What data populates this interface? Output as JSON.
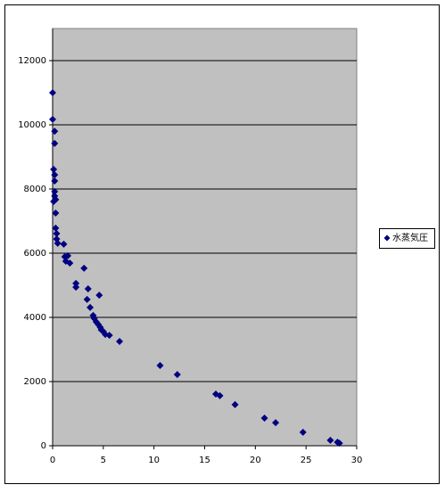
{
  "chart_data": {
    "type": "scatter",
    "series": [
      {
        "name": "水蒸気圧",
        "color": "#000080",
        "x": [
          0,
          0,
          0.2,
          0.2,
          0.1,
          0.2,
          0.2,
          0.2,
          0.2,
          0.1,
          0.3,
          0.3,
          0.3,
          0.4,
          0.4,
          0.5,
          1.1,
          1.2,
          1.5,
          1.3,
          1.7,
          3.1,
          2.3,
          2.3,
          3.5,
          4.6,
          3.4,
          3.7,
          4.0,
          4.1,
          4.3,
          4.5,
          4.7,
          4.8,
          5.0,
          5.2,
          5.6,
          6.6,
          10.6,
          12.3,
          16.1,
          16.5,
          18.0,
          20.9,
          22.0,
          24.7,
          27.4,
          28.1,
          28.3
        ],
        "values": [
          11000,
          10170,
          9800,
          9420,
          8610,
          8440,
          8250,
          7920,
          7780,
          7610,
          7670,
          7250,
          6780,
          6610,
          6440,
          6310,
          6280,
          5890,
          5920,
          5750,
          5690,
          5530,
          5060,
          4940,
          4890,
          4690,
          4560,
          4310,
          4060,
          3970,
          3860,
          3780,
          3690,
          3610,
          3560,
          3470,
          3440,
          3250,
          2500,
          2220,
          1610,
          1560,
          1280,
          860,
          720,
          420,
          170,
          110,
          80
        ]
      }
    ],
    "xlim": [
      0,
      30
    ],
    "xticks": [
      0,
      5,
      10,
      15,
      20,
      25,
      30
    ],
    "ylim": [
      0,
      13000
    ],
    "yticks": [
      0,
      2000,
      4000,
      6000,
      8000,
      10000,
      12000
    ],
    "grid": true,
    "legend": "right",
    "plot_background": "#c0c0c0"
  }
}
